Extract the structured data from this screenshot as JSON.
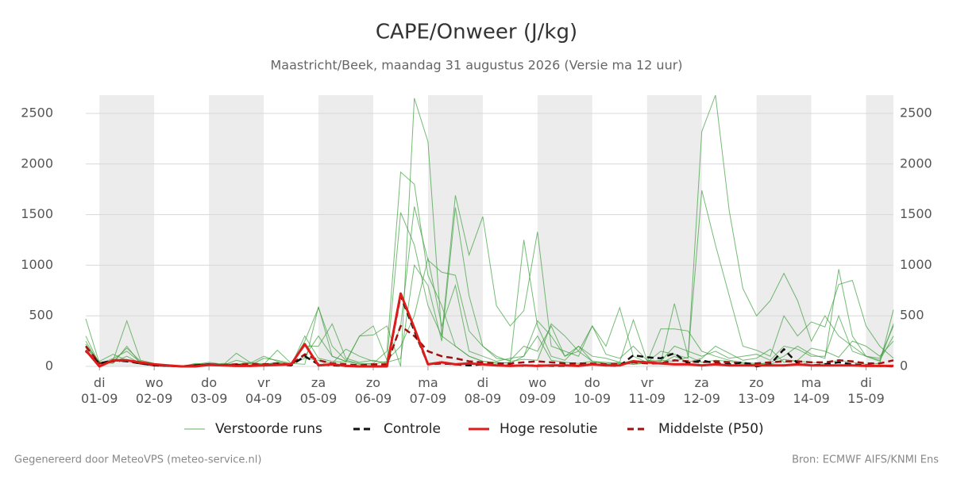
{
  "chart_data": {
    "type": "line",
    "title": "CAPE/Onweer (J/kg)",
    "subtitle": "Maastricht/Beek, maandag 31 augustus 2026 (Versie ma 12 uur)",
    "footer_left": "Gegenereerd door MeteoVPS (meteo-service.nl)",
    "footer_right": "Bron: ECMWF AIFS/KNMI Ens",
    "xlim": [
      -0.25,
      14.5
    ],
    "ylim": [
      0,
      2680
    ],
    "yticks": [
      0,
      500,
      1000,
      1500,
      2000,
      2500
    ],
    "xticks": [
      {
        "value": 0,
        "label": "di 01-09"
      },
      {
        "value": 1,
        "label": "wo 02-09"
      },
      {
        "value": 2,
        "label": "do 03-09"
      },
      {
        "value": 3,
        "label": "vr 04-09"
      },
      {
        "value": 4,
        "label": "za 05-09"
      },
      {
        "value": 5,
        "label": "zo 06-09"
      },
      {
        "value": 6,
        "label": "ma 07-09"
      },
      {
        "value": 7,
        "label": "di 08-09"
      },
      {
        "value": 8,
        "label": "wo 09-09"
      },
      {
        "value": 9,
        "label": "do 10-09"
      },
      {
        "value": 10,
        "label": "vr 11-09"
      },
      {
        "value": 11,
        "label": "za 12-09"
      },
      {
        "value": 12,
        "label": "zo 13-09"
      },
      {
        "value": 13,
        "label": "ma 14-09"
      },
      {
        "value": 14,
        "label": "di 15-09"
      }
    ],
    "grid": true,
    "x": [
      -0.25,
      0,
      0.25,
      0.5,
      0.75,
      1,
      1.25,
      1.5,
      1.75,
      2,
      2.25,
      2.5,
      2.75,
      3,
      3.25,
      3.5,
      3.75,
      4,
      4.25,
      4.5,
      4.75,
      5,
      5.25,
      5.5,
      5.75,
      6,
      6.25,
      6.5,
      6.75,
      7,
      7.25,
      7.5,
      7.75,
      8,
      8.25,
      8.5,
      8.75,
      9,
      9.25,
      9.5,
      9.75,
      10,
      10.25,
      10.5,
      10.75,
      11,
      11.25,
      11.5,
      11.75,
      12,
      12.25,
      12.5,
      12.75,
      13,
      13.25,
      13.5,
      13.75,
      14,
      14.25,
      14.5
    ],
    "perturbed": {
      "name": "Verstoorde runs",
      "color": "#3c9e3c",
      "runs": [
        [
          470,
          30,
          60,
          450,
          60,
          30,
          10,
          0,
          20,
          40,
          20,
          10,
          5,
          30,
          20,
          10,
          300,
          80,
          50,
          40,
          300,
          310,
          400,
          0,
          2650,
          2220,
          300,
          200,
          100,
          50,
          40,
          30,
          100,
          300,
          60,
          40,
          30,
          50,
          20,
          30,
          60,
          40,
          370,
          370,
          350,
          150,
          100,
          60,
          40,
          30,
          20,
          70,
          50,
          40,
          30,
          60,
          40,
          20,
          30,
          560
        ],
        [
          250,
          20,
          80,
          150,
          40,
          20,
          5,
          0,
          30,
          20,
          10,
          130,
          40,
          20,
          160,
          30,
          20,
          590,
          100,
          50,
          20,
          30,
          150,
          1920,
          1800,
          900,
          600,
          200,
          100,
          50,
          30,
          40,
          1250,
          400,
          100,
          60,
          200,
          100,
          80,
          40,
          20,
          30,
          40,
          620,
          100,
          40,
          60,
          50,
          30,
          20,
          40,
          100,
          200,
          120,
          80,
          960,
          300,
          100,
          50,
          420
        ],
        [
          200,
          40,
          50,
          180,
          50,
          20,
          10,
          0,
          10,
          30,
          20,
          10,
          30,
          20,
          40,
          20,
          250,
          580,
          200,
          60,
          30,
          20,
          50,
          1520,
          1200,
          600,
          300,
          1690,
          1100,
          1480,
          600,
          400,
          550,
          1330,
          200,
          150,
          100,
          400,
          200,
          580,
          100,
          40,
          60,
          50,
          90,
          1740,
          1200,
          700,
          200,
          160,
          100,
          500,
          300,
          440,
          390,
          810,
          850,
          400,
          200,
          80
        ],
        [
          300,
          20,
          40,
          100,
          30,
          10,
          5,
          0,
          20,
          10,
          30,
          20,
          10,
          80,
          60,
          30,
          200,
          200,
          420,
          80,
          40,
          60,
          30,
          400,
          1580,
          1050,
          930,
          900,
          350,
          200,
          100,
          50,
          70,
          60,
          420,
          300,
          150,
          50,
          40,
          30,
          20,
          40,
          150,
          120,
          80,
          2320,
          2680,
          1540,
          770,
          500,
          650,
          920,
          650,
          250,
          500,
          300,
          200,
          100,
          60,
          300
        ],
        [
          180,
          50,
          120,
          60,
          20,
          10,
          0,
          0,
          10,
          20,
          10,
          60,
          30,
          100,
          50,
          20,
          80,
          60,
          30,
          170,
          100,
          50,
          40,
          80,
          1000,
          800,
          250,
          1570,
          700,
          200,
          80,
          60,
          200,
          150,
          400,
          100,
          200,
          50,
          30,
          40,
          460,
          60,
          30,
          100,
          40,
          80,
          200,
          130,
          60,
          80,
          170,
          40,
          60,
          180,
          150,
          90,
          250,
          200,
          100,
          250
        ],
        [
          220,
          40,
          30,
          200,
          30,
          20,
          10,
          0,
          20,
          10,
          10,
          20,
          40,
          20,
          30,
          20,
          100,
          300,
          100,
          50,
          300,
          400,
          60,
          200,
          500,
          1070,
          400,
          800,
          150,
          100,
          50,
          80,
          100,
          450,
          300,
          100,
          150,
          400,
          120,
          80,
          200,
          60,
          50,
          200,
          150,
          100,
          150,
          80,
          100,
          120,
          60,
          200,
          170,
          100,
          100,
          500,
          150,
          100,
          80,
          400
        ]
      ]
    },
    "series": [
      {
        "name": "Controle",
        "color": "#111111",
        "dashed": true,
        "values": [
          150,
          30,
          60,
          50,
          30,
          10,
          5,
          0,
          10,
          20,
          10,
          15,
          5,
          10,
          20,
          10,
          100,
          20,
          10,
          5,
          0,
          0,
          0,
          700,
          350,
          20,
          30,
          20,
          10,
          20,
          10,
          10,
          5,
          10,
          5,
          5,
          10,
          20,
          10,
          5,
          110,
          90,
          80,
          130,
          30,
          60,
          30,
          20,
          40,
          0,
          20,
          170,
          30,
          10,
          20,
          40,
          20,
          10,
          5,
          0
        ]
      },
      {
        "name": "Hoge resolutie",
        "color": "#dd1c1c",
        "dashed": false,
        "values": [
          160,
          0,
          60,
          60,
          40,
          20,
          10,
          0,
          0,
          15,
          10,
          5,
          5,
          10,
          15,
          20,
          220,
          10,
          20,
          5,
          0,
          0,
          0,
          720,
          380,
          20,
          40,
          20,
          30,
          20,
          10,
          5,
          10,
          5,
          10,
          10,
          5,
          20,
          10,
          10,
          50,
          40,
          30,
          20,
          20,
          10,
          20,
          10,
          10,
          10,
          10,
          10,
          20,
          10,
          10,
          10,
          10,
          5,
          5,
          5
        ]
      },
      {
        "name": "Middelste (P50)",
        "color": "#a01010",
        "dashed": true,
        "values": [
          200,
          30,
          50,
          60,
          30,
          10,
          5,
          0,
          10,
          20,
          15,
          20,
          20,
          20,
          30,
          20,
          120,
          60,
          30,
          20,
          10,
          20,
          20,
          400,
          300,
          150,
          100,
          80,
          50,
          40,
          30,
          30,
          40,
          50,
          40,
          30,
          30,
          30,
          20,
          20,
          40,
          30,
          30,
          60,
          50,
          40,
          50,
          40,
          30,
          30,
          40,
          50,
          50,
          40,
          40,
          60,
          50,
          30,
          30,
          60
        ]
      }
    ]
  }
}
